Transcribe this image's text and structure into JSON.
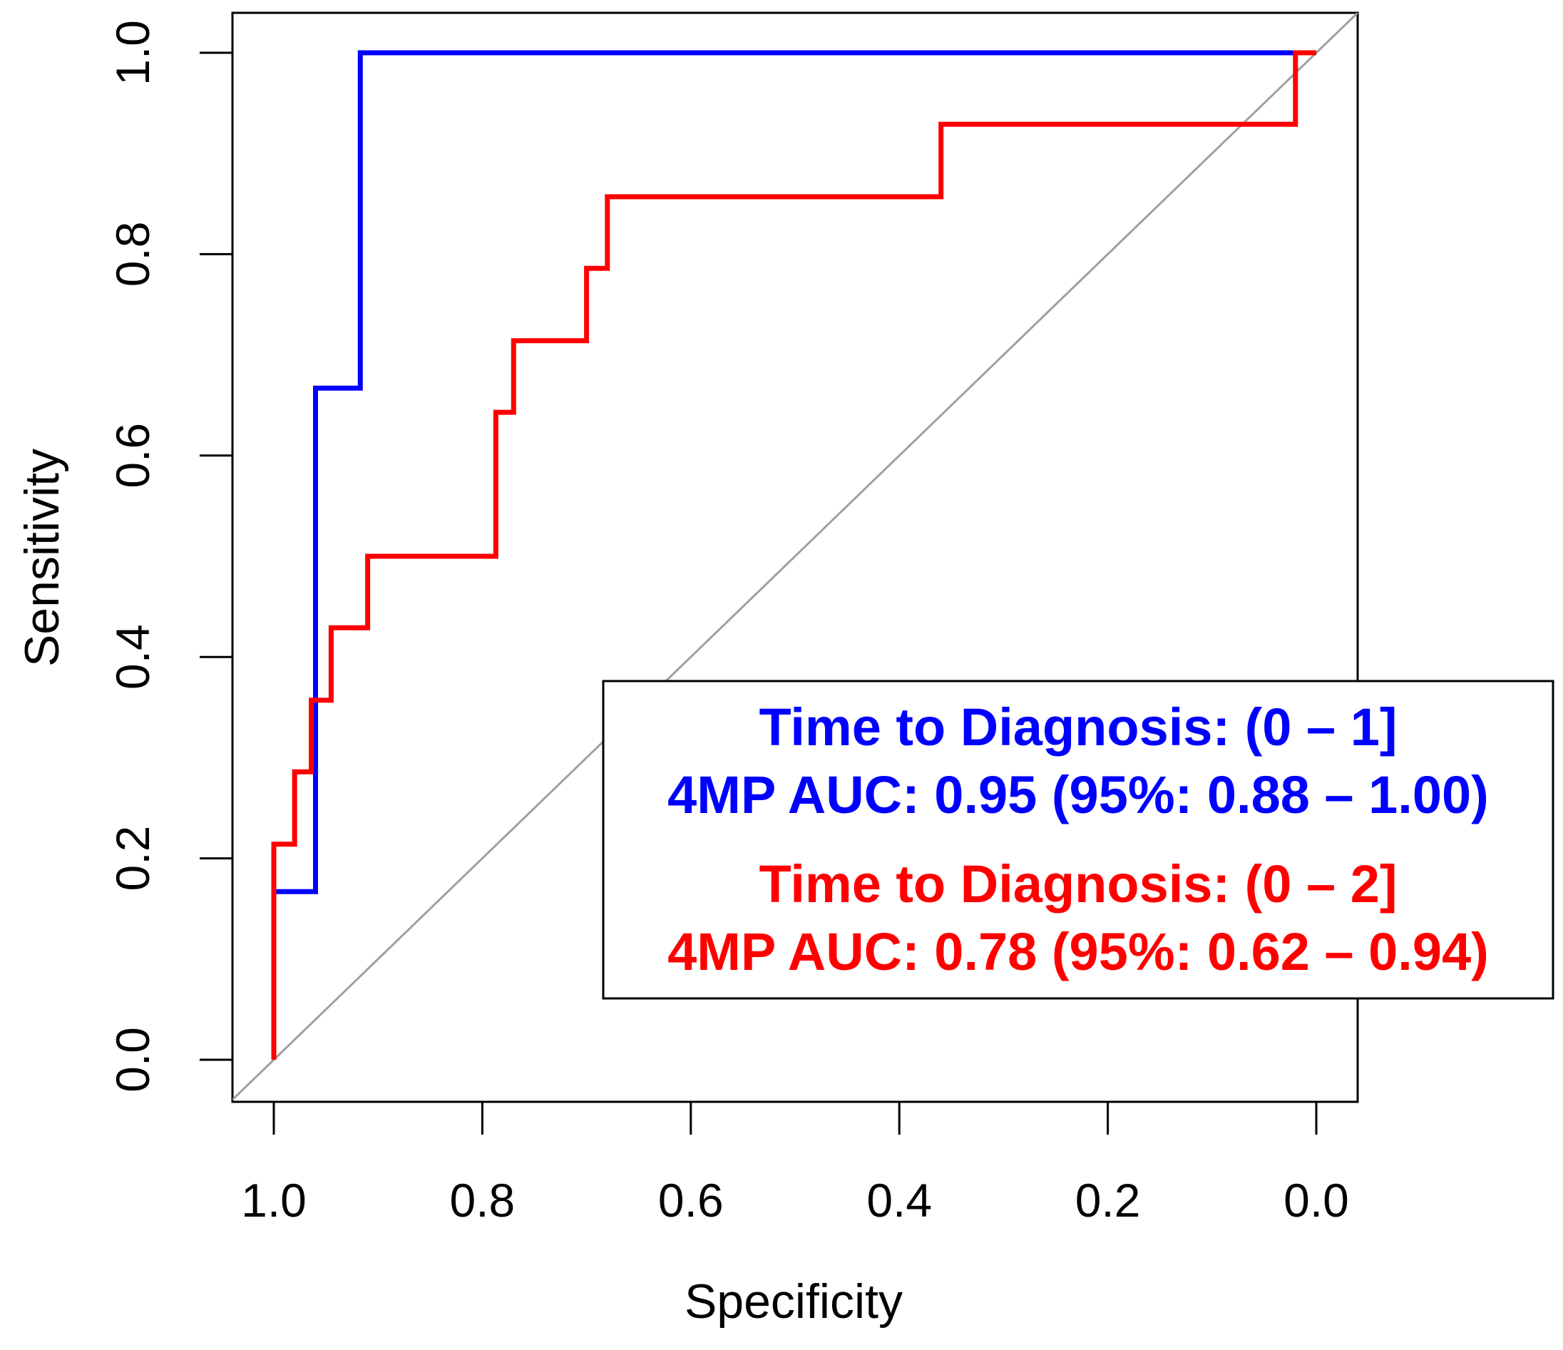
{
  "chart_data": {
    "type": "line",
    "title": "",
    "xlabel": "Specificity",
    "ylabel": "Sensitivity",
    "xlim": [
      1.0,
      0.0
    ],
    "ylim": [
      0.0,
      1.0
    ],
    "x_reversed": true,
    "x_ticks": [
      "1.0",
      "0.8",
      "0.6",
      "0.4",
      "0.2",
      "0.0"
    ],
    "y_ticks": [
      "0.0",
      "0.2",
      "0.4",
      "0.6",
      "0.8",
      "1.0"
    ],
    "grid": false,
    "reference_line": {
      "description": "chance diagonal",
      "color": "#a0a0a0",
      "points": [
        [
          1.0,
          0.0
        ],
        [
          0.0,
          1.0
        ]
      ]
    },
    "series": [
      {
        "name": "Time to Diagnosis: (0 – 1]",
        "color": "#0000ff",
        "specificity": [
          1.0,
          1.0,
          0.96,
          0.96,
          0.917,
          0.917,
          0.0
        ],
        "sensitivity": [
          0.0,
          0.167,
          0.167,
          0.667,
          0.667,
          1.0,
          1.0
        ]
      },
      {
        "name": "Time to Diagnosis: (0 – 2]",
        "color": "#ff0000",
        "specificity": [
          1.0,
          1.0,
          0.98,
          0.98,
          0.964,
          0.964,
          0.945,
          0.945,
          0.91,
          0.91,
          0.787,
          0.787,
          0.77,
          0.77,
          0.7,
          0.7,
          0.68,
          0.68,
          0.36,
          0.36,
          0.02,
          0.02,
          0.0
        ],
        "sensitivity": [
          0.0,
          0.214,
          0.214,
          0.286,
          0.286,
          0.357,
          0.357,
          0.429,
          0.429,
          0.5,
          0.5,
          0.643,
          0.643,
          0.714,
          0.714,
          0.786,
          0.786,
          0.857,
          0.857,
          0.929,
          0.929,
          1.0,
          1.0
        ]
      }
    ],
    "legend": {
      "placement": "bottom-right",
      "entries": [
        {
          "line1": "Time to Diagnosis: (0 – 1]",
          "line2": "4MP AUC: 0.95 (95%: 0.88 – 1.00)",
          "color": "#0000ff"
        },
        {
          "line1": "Time to Diagnosis: (0 – 2]",
          "line2": "4MP AUC: 0.78 (95%: 0.62 – 0.94)",
          "color": "#ff0000"
        }
      ]
    }
  }
}
